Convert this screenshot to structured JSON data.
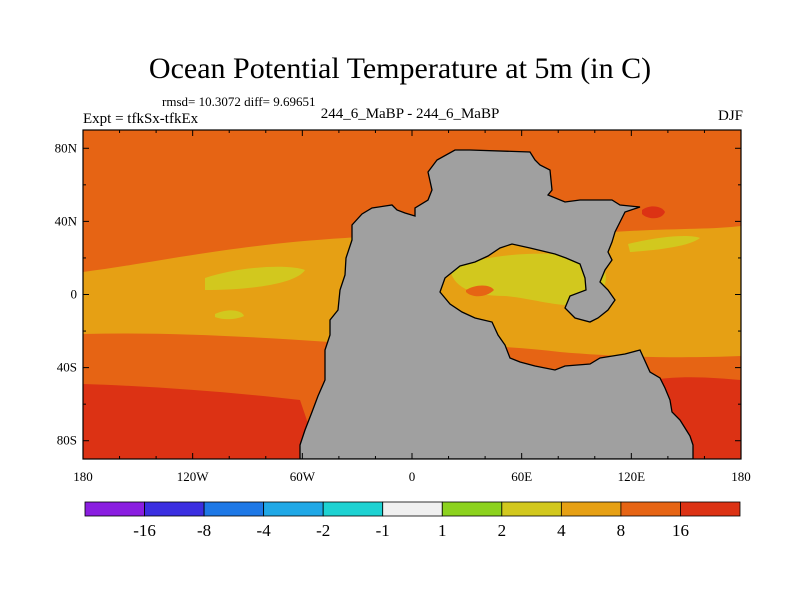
{
  "chart_data": {
    "type": "heatmap",
    "title": "Ocean Potential Temperature at 5m (in C)",
    "stats_text": "rmsd= 10.3072  diff= 9.69651",
    "experiment_label": "Expt = tfkSx-tfkEx",
    "case_label": "244_6_MaBP - 244_6_MaBP",
    "season": "DJF",
    "xlim": [
      -180,
      180
    ],
    "ylim": [
      -90,
      90
    ],
    "x_ticks": [
      {
        "value": -180,
        "label": "180"
      },
      {
        "value": -120,
        "label": "120W"
      },
      {
        "value": -60,
        "label": "60W"
      },
      {
        "value": 0,
        "label": "0"
      },
      {
        "value": 60,
        "label": "60E"
      },
      {
        "value": 120,
        "label": "120E"
      },
      {
        "value": 180,
        "label": "180"
      }
    ],
    "y_ticks": [
      {
        "value": 80,
        "label": "80N"
      },
      {
        "value": 40,
        "label": "40N"
      },
      {
        "value": 0,
        "label": "0"
      },
      {
        "value": -40,
        "label": "40S"
      },
      {
        "value": -80,
        "label": "80S"
      }
    ],
    "colorbar": {
      "colors": [
        "#8a1ee0",
        "#3b2ee0",
        "#1e78e6",
        "#20a8e6",
        "#1ed2d2",
        "#f0f0f0",
        "#8cd21e",
        "#d2c81e",
        "#e6a014",
        "#e66414",
        "#dc3214"
      ],
      "labels": [
        "-16",
        "-8",
        "-4",
        "-2",
        "-1",
        "1",
        "2",
        "4",
        "8",
        "16"
      ]
    },
    "colors": {
      "land": "#a0a0a0",
      "range_4_8": "#e6a014",
      "range_8_16": "#e66414",
      "range_gt_16": "#dc3214",
      "range_2_4": "#d2c81e"
    }
  }
}
